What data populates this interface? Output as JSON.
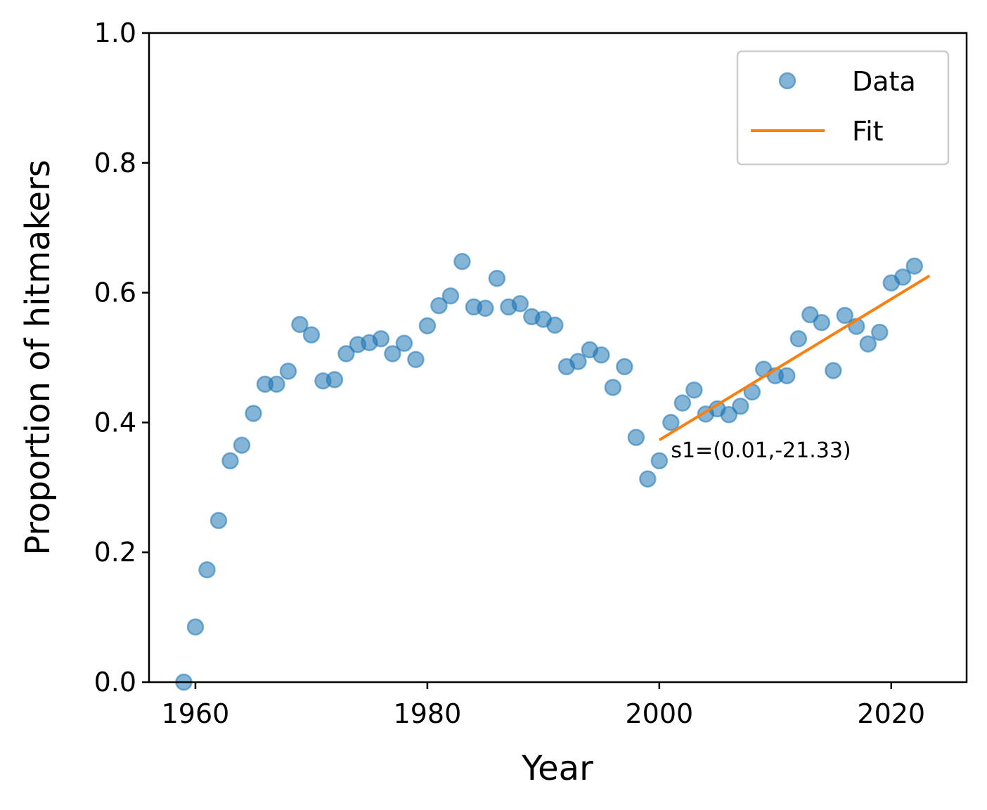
{
  "chart_data": {
    "type": "scatter",
    "xlabel": "Year",
    "ylabel": "Proportion of hitmakers",
    "xlim": [
      1956,
      2026.5
    ],
    "ylim": [
      0,
      1
    ],
    "xticks": [
      1960,
      1980,
      2000,
      2020
    ],
    "yticks": [
      0.0,
      0.2,
      0.4,
      0.6,
      0.8,
      1.0
    ],
    "xtick_labels": [
      "1960",
      "1980",
      "2000",
      "2020"
    ],
    "ytick_labels": [
      "0.0",
      "0.2",
      "0.4",
      "0.6",
      "0.8",
      "1.0"
    ],
    "grid": false,
    "legend": {
      "position": "top-right",
      "entries": [
        "Data",
        "Fit"
      ]
    },
    "series": [
      {
        "name": "Data",
        "kind": "scatter",
        "color": "#1f77b4",
        "x": [
          1959,
          1960,
          1961,
          1962,
          1963,
          1964,
          1965,
          1966,
          1967,
          1968,
          1969,
          1970,
          1971,
          1972,
          1973,
          1974,
          1975,
          1976,
          1977,
          1978,
          1979,
          1980,
          1981,
          1982,
          1983,
          1984,
          1985,
          1986,
          1987,
          1988,
          1989,
          1990,
          1991,
          1992,
          1993,
          1994,
          1995,
          1996,
          1997,
          1998,
          1999,
          2000,
          2001,
          2002,
          2003,
          2004,
          2005,
          2006,
          2007,
          2008,
          2009,
          2010,
          2011,
          2012,
          2013,
          2014,
          2015,
          2016,
          2017,
          2018,
          2019,
          2020,
          2021,
          2022
        ],
        "y": [
          0.0,
          0.085,
          0.173,
          0.249,
          0.341,
          0.365,
          0.414,
          0.459,
          0.459,
          0.479,
          0.551,
          0.535,
          0.464,
          0.466,
          0.506,
          0.52,
          0.523,
          0.529,
          0.506,
          0.522,
          0.497,
          0.549,
          0.58,
          0.595,
          0.648,
          0.578,
          0.576,
          0.622,
          0.578,
          0.583,
          0.563,
          0.559,
          0.55,
          0.486,
          0.494,
          0.512,
          0.504,
          0.454,
          0.486,
          0.377,
          0.313,
          0.341,
          0.4,
          0.43,
          0.45,
          0.413,
          0.421,
          0.412,
          0.425,
          0.447,
          0.482,
          0.472,
          0.472,
          0.529,
          0.566,
          0.554,
          0.48,
          0.565,
          0.548,
          0.521,
          0.539,
          0.615,
          0.624,
          0.641
        ]
      },
      {
        "name": "Fit",
        "kind": "line",
        "color": "#ff7f0e",
        "x": [
          2000,
          2023.3
        ],
        "y": [
          0.373,
          0.626
        ]
      }
    ],
    "annotations": [
      {
        "text": "s1=(0.01,-21.33)",
        "x": 2001,
        "y": 0.357
      }
    ]
  }
}
